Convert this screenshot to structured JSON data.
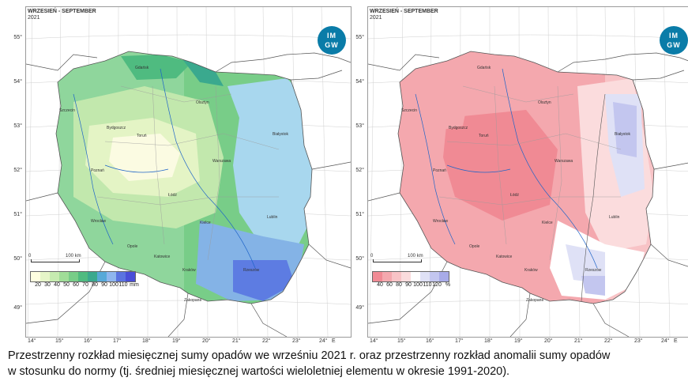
{
  "maps": [
    {
      "header_line1": "WRZESIEŃ - SEPTEMBER",
      "header_line2": "2021",
      "logo_top": "IM",
      "logo_bottom": "GW",
      "legend_labels": [
        "20",
        "30",
        "40",
        "50",
        "60",
        "70",
        "80",
        "90",
        "100",
        "110"
      ],
      "legend_unit": "mm",
      "legend_colors": [
        "#ffffe0",
        "#e6f5c8",
        "#c6ebb0",
        "#a0dd98",
        "#78cd88",
        "#4fbb80",
        "#3aa98e",
        "#58a9d8",
        "#8fb6ee",
        "#5b73e0",
        "#4a4ed8"
      ],
      "scale_0": "0",
      "scale_100": "100 km",
      "lat_labels": [
        "55°",
        "54°",
        "53°",
        "52°",
        "51°",
        "50°",
        "49°"
      ],
      "lon_labels": [
        "14°",
        "15°",
        "16°",
        "17°",
        "18°",
        "19°",
        "20°",
        "21°",
        "22°",
        "23°",
        "24°"
      ],
      "lon_suffix": "E",
      "cities": [
        "Gdańsk",
        "Olsztyn",
        "Szczecin",
        "Bydgoszcz",
        "Toruń",
        "Białystok",
        "Poznań",
        "Warszawa",
        "Łódź",
        "Lublin",
        "Wrocław",
        "Opole",
        "Katowice",
        "Kraków",
        "Rzeszów",
        "Kielce",
        "Zakopane"
      ]
    },
    {
      "header_line1": "WRZESIEŃ - SEPTEMBER",
      "header_line2": "2021",
      "logo_top": "IM",
      "logo_bottom": "GW",
      "legend_labels": [
        "40",
        "60",
        "80",
        "90",
        "100",
        "110",
        "120"
      ],
      "legend_unit": "%",
      "legend_colors": [
        "#f08a94",
        "#f4a8ae",
        "#f8c3c6",
        "#fbdcdd",
        "#ffffff",
        "#dfe1f6",
        "#c3c6ef",
        "#a8abe8"
      ],
      "scale_0": "0",
      "scale_100": "100 km",
      "lat_labels": [
        "55°",
        "54°",
        "53°",
        "52°",
        "51°",
        "50°",
        "49°"
      ],
      "lon_labels": [
        "14°",
        "15°",
        "16°",
        "17°",
        "18°",
        "19°",
        "20°",
        "21°",
        "22°",
        "23°",
        "24°"
      ],
      "lon_suffix": "E",
      "cities": [
        "Gdańsk",
        "Olsztyn",
        "Szczecin",
        "Bydgoszcz",
        "Toruń",
        "Białystok",
        "Poznań",
        "Warszawa",
        "Łódź",
        "Lublin",
        "Wrocław",
        "Opole",
        "Katowice",
        "Kraków",
        "Rzeszów",
        "Kielce",
        "Zakopane"
      ]
    }
  ],
  "caption": {
    "line1": "Przestrzenny rozkład miesięcznej sumy opadów we wrześniu 2021 r. oraz przestrzenny rozkład anomalii sumy opadów",
    "line2": "w stosunku do normy (tj. średniej miesięcznej wartości wieloletniej elementu w okresie 1991-2020)."
  }
}
